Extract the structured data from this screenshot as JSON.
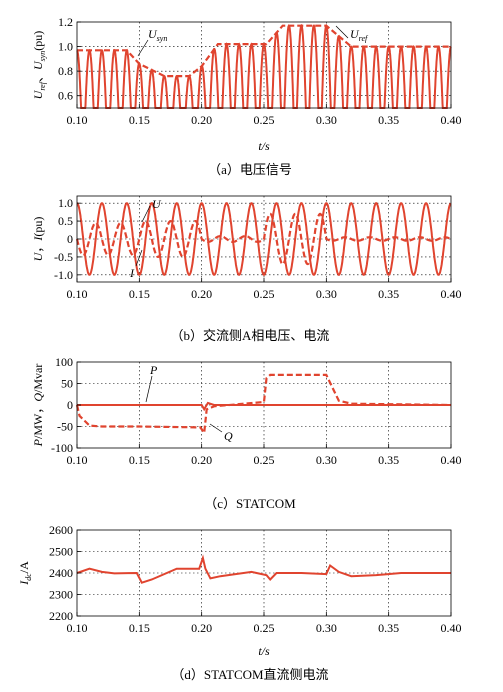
{
  "xlabel": "t/s",
  "x_ticks": [
    "0.10",
    "0.15",
    "0.20",
    "0.25",
    "0.30",
    "0.35",
    "0.40"
  ],
  "chart_data": [
    {
      "type": "line",
      "caption": "（a）电压信号",
      "ylabel": "Uref、Usyn(pu)",
      "xlim": [
        0.1,
        0.4
      ],
      "ylim": [
        0.5,
        1.2
      ],
      "y_ticks": [
        "0.6",
        "0.8",
        "1.0",
        "1.2"
      ],
      "series": [
        {
          "name": "Uref",
          "style": "dashed",
          "color": "#e0442f",
          "x": [
            0.1,
            0.14,
            0.15,
            0.17,
            0.19,
            0.2,
            0.213,
            0.252,
            0.265,
            0.3,
            0.32,
            0.4
          ],
          "y": [
            0.97,
            0.97,
            0.86,
            0.76,
            0.76,
            0.84,
            1.02,
            1.02,
            1.17,
            1.17,
            1.0,
            1.0
          ]
        },
        {
          "name": "Usyn",
          "style": "solid",
          "color": "#e0442f",
          "note": "sine-lock pulses following Uref amplitude, 50 Hz"
        }
      ],
      "annotations": [
        {
          "text": "Usyn",
          "main": "U",
          "sub": "syn"
        },
        {
          "text": "Uref",
          "main": "U",
          "sub": "ref"
        }
      ]
    },
    {
      "type": "line",
      "caption": "（b）交流侧A相电压、电流",
      "ylabel": "U，I(pu)",
      "xlim": [
        0.1,
        0.4
      ],
      "ylim": [
        -1.2,
        1.2
      ],
      "y_ticks": [
        "-1.0",
        "-0.5",
        "0",
        "0.5",
        "1.0"
      ],
      "series": [
        {
          "name": "U",
          "style": "solid",
          "color": "#e0442f",
          "amplitude": 1.0,
          "freq_hz": 50
        },
        {
          "name": "I",
          "style": "dashed",
          "color": "#e0442f",
          "amplitude_segments": [
            {
              "x": [
                0.1,
                0.15
              ],
              "amp": 0.45
            },
            {
              "x": [
                0.15,
                0.2
              ],
              "amp": 0.5
            },
            {
              "x": [
                0.2,
                0.25
              ],
              "amp": 0.08
            },
            {
              "x": [
                0.25,
                0.3
              ],
              "amp": 0.7
            },
            {
              "x": [
                0.3,
                0.4
              ],
              "amp": 0.05
            }
          ]
        }
      ],
      "annotations": [
        {
          "text": "U"
        },
        {
          "text": "I"
        }
      ]
    },
    {
      "type": "line",
      "caption": "（c）STATCOM",
      "ylabel": "P/MW，Q/Mvar",
      "xlim": [
        0.1,
        0.4
      ],
      "ylim": [
        -100,
        100
      ],
      "y_ticks": [
        "-100",
        "-50",
        "0",
        "50",
        "100"
      ],
      "series": [
        {
          "name": "P",
          "style": "solid",
          "color": "#e0442f",
          "x": [
            0.1,
            0.2,
            0.202,
            0.205,
            0.21,
            0.4
          ],
          "y": [
            0,
            0,
            -10,
            5,
            0,
            0
          ]
        },
        {
          "name": "Q",
          "style": "dashed",
          "color": "#e0442f",
          "x": [
            0.1,
            0.102,
            0.11,
            0.12,
            0.15,
            0.199,
            0.202,
            0.204,
            0.21,
            0.25,
            0.252,
            0.255,
            0.3,
            0.31,
            0.32,
            0.4
          ],
          "y": [
            0,
            -25,
            -48,
            -50,
            -50,
            -52,
            -65,
            -10,
            -3,
            7,
            62,
            70,
            70,
            10,
            3,
            0
          ]
        }
      ],
      "annotations": [
        {
          "text": "P"
        },
        {
          "text": "Q"
        }
      ]
    },
    {
      "type": "line",
      "caption": "（d）STATCOM直流侧电流",
      "ylabel": "Idc/A",
      "xlim": [
        0.1,
        0.4
      ],
      "ylim": [
        2200,
        2600
      ],
      "y_ticks": [
        "2200",
        "2300",
        "2400",
        "2500",
        "2600"
      ],
      "series": [
        {
          "name": "Idc",
          "style": "solid",
          "color": "#e0442f",
          "x": [
            0.1,
            0.11,
            0.12,
            0.13,
            0.148,
            0.152,
            0.16,
            0.18,
            0.198,
            0.201,
            0.203,
            0.207,
            0.215,
            0.24,
            0.252,
            0.255,
            0.26,
            0.28,
            0.3,
            0.303,
            0.31,
            0.32,
            0.34,
            0.36,
            0.4
          ],
          "y": [
            2400,
            2420,
            2405,
            2398,
            2400,
            2355,
            2370,
            2420,
            2420,
            2470,
            2420,
            2375,
            2385,
            2405,
            2390,
            2370,
            2400,
            2400,
            2395,
            2435,
            2405,
            2385,
            2390,
            2400,
            2400
          ]
        }
      ]
    }
  ]
}
